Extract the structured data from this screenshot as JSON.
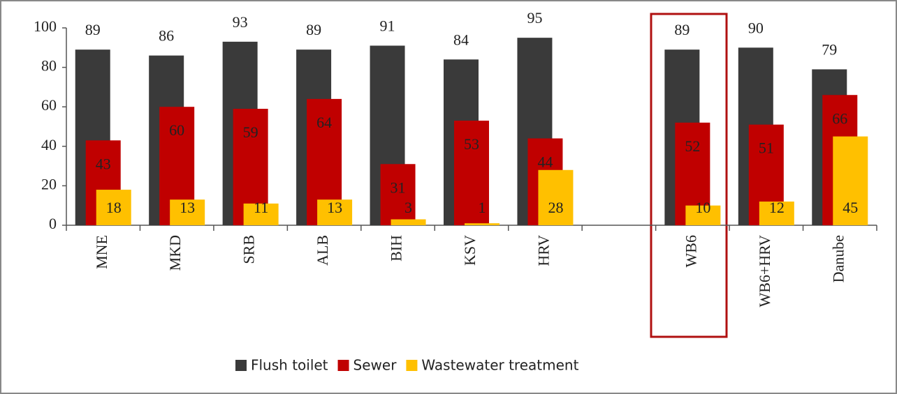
{
  "chart_data": {
    "type": "bar",
    "categories": [
      "MNE",
      "MKD",
      "SRB",
      "ALB",
      "BIH",
      "KSV",
      "HRV",
      null,
      "WB6",
      "WB6+HRV",
      "Danube"
    ],
    "series": [
      {
        "name": "Flush toilet",
        "color": "#3a3a3a",
        "values": [
          89,
          86,
          93,
          89,
          91,
          84,
          95,
          null,
          89,
          90,
          79
        ]
      },
      {
        "name": "Sewer",
        "color": "#c00000",
        "values": [
          43,
          60,
          59,
          64,
          31,
          53,
          44,
          null,
          52,
          51,
          66
        ]
      },
      {
        "name": "Wastewater treatment",
        "color": "#ffc000",
        "values": [
          18,
          13,
          11,
          13,
          3,
          1,
          28,
          null,
          10,
          12,
          45
        ]
      }
    ],
    "ylim": [
      0,
      100
    ],
    "yticks": [
      0,
      20,
      40,
      60,
      80,
      100
    ],
    "grid": false,
    "legend": "bottom"
  }
}
